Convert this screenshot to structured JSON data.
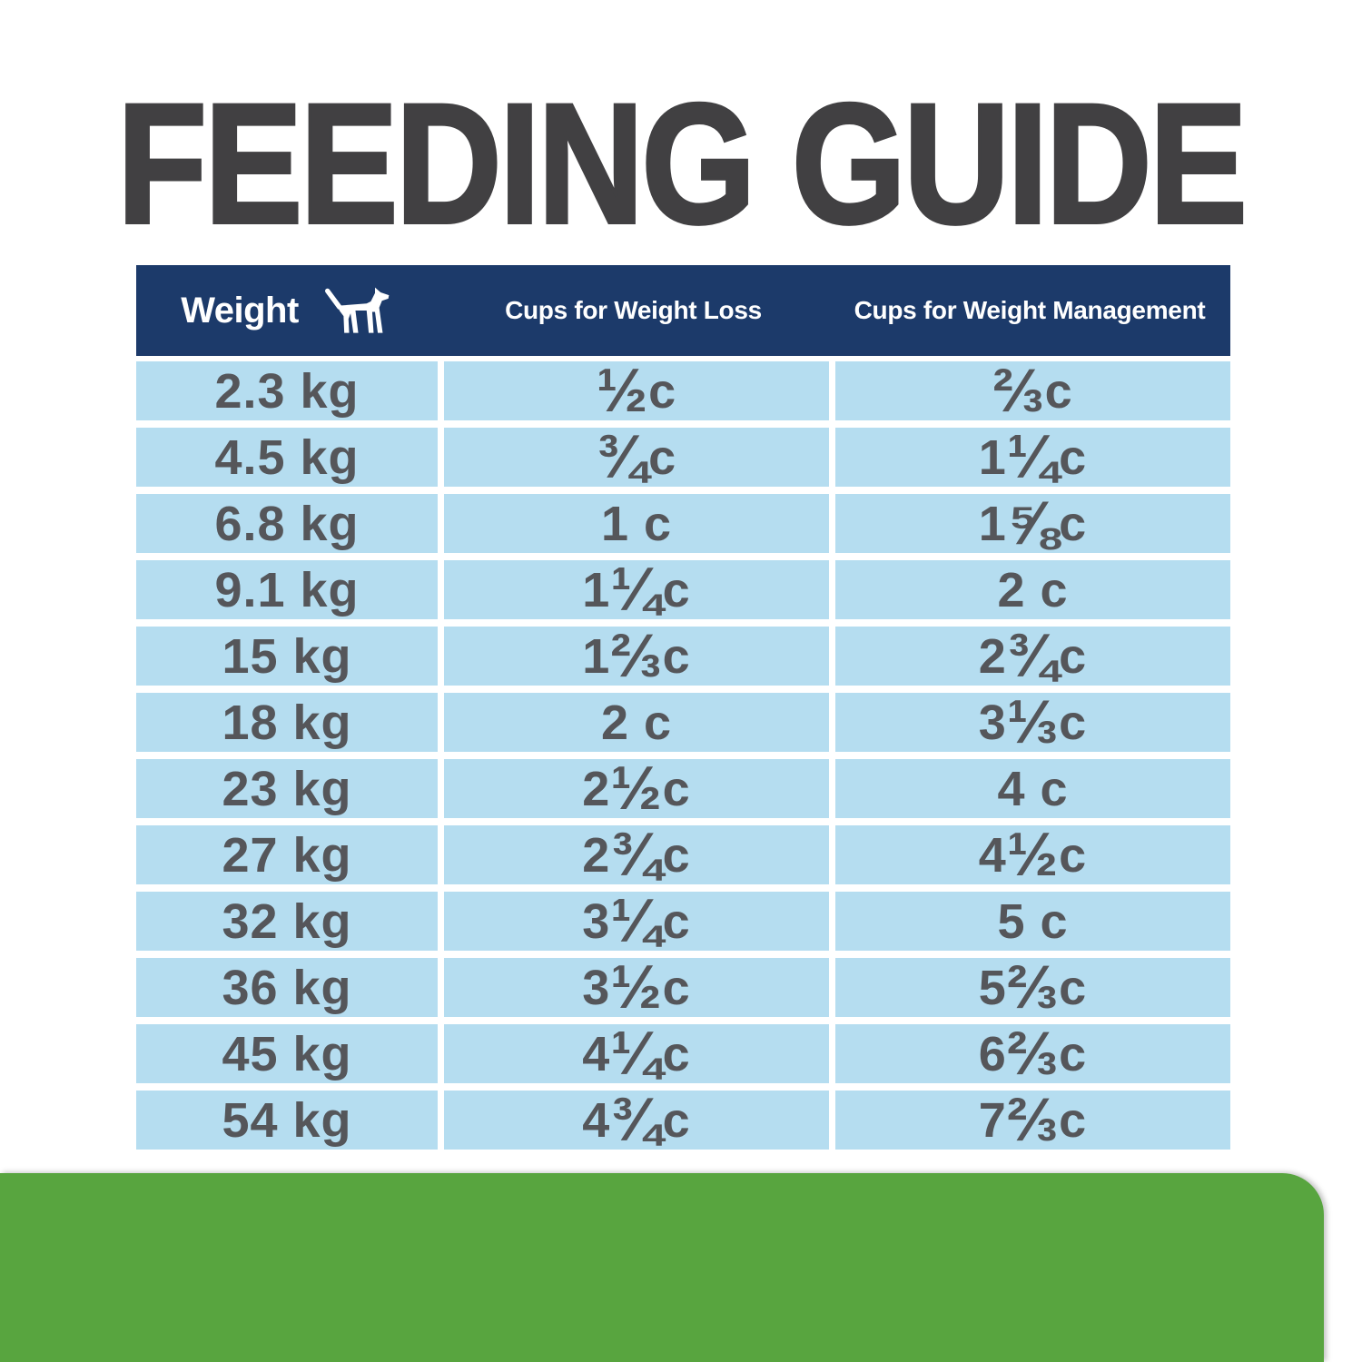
{
  "title": "FEEDING GUIDE",
  "table": {
    "header": {
      "weight_label": "Weight",
      "weight_icon": "dog-icon",
      "cups_weight_loss_label": "Cups for Weight Loss",
      "cups_weight_management_label": "Cups for Weight Management"
    },
    "rows": [
      {
        "weight": "2.3 kg",
        "cups_weight_loss": "½ c",
        "cups_weight_management": "⅔ c"
      },
      {
        "weight": "4.5 kg",
        "cups_weight_loss": "¾ c",
        "cups_weight_management": "1 ¼ c"
      },
      {
        "weight": "6.8 kg",
        "cups_weight_loss": "1 c",
        "cups_weight_management": "1 ⅝ c"
      },
      {
        "weight": "9.1 kg",
        "cups_weight_loss": "1 ¼ c",
        "cups_weight_management": "2 c"
      },
      {
        "weight": "15 kg",
        "cups_weight_loss": "1 ⅔ c",
        "cups_weight_management": "2 ¾ c"
      },
      {
        "weight": "18 kg",
        "cups_weight_loss": "2 c",
        "cups_weight_management": "3 ⅓ c"
      },
      {
        "weight": "23 kg",
        "cups_weight_loss": "2 ½ c",
        "cups_weight_management": "4 c"
      },
      {
        "weight": "27 kg",
        "cups_weight_loss": "2 ¾ c",
        "cups_weight_management": "4 ½ c"
      },
      {
        "weight": "32 kg",
        "cups_weight_loss": "3 ¼ c",
        "cups_weight_management": "5 c"
      },
      {
        "weight": "36 kg",
        "cups_weight_loss": "3 ½ c",
        "cups_weight_management": "5 ⅔ c"
      },
      {
        "weight": "45 kg",
        "cups_weight_loss": "4 ¼ c",
        "cups_weight_management": "6 ⅔ c"
      },
      {
        "weight": "54 kg",
        "cups_weight_loss": "4 ¾ c",
        "cups_weight_management": "7 ⅔ c"
      }
    ]
  },
  "chart_data": {
    "type": "table",
    "title": "FEEDING GUIDE",
    "columns": [
      "Weight",
      "Cups for Weight Loss",
      "Cups for Weight Management"
    ],
    "rows": [
      [
        "2.3 kg",
        "1/2 c",
        "2/3 c"
      ],
      [
        "4.5 kg",
        "3/4 c",
        "1 1/4 c"
      ],
      [
        "6.8 kg",
        "1 c",
        "1 5/8 c"
      ],
      [
        "9.1 kg",
        "1 1/4 c",
        "2 c"
      ],
      [
        "15 kg",
        "1 2/3 c",
        "2 3/4 c"
      ],
      [
        "18 kg",
        "2 c",
        "3 1/3 c"
      ],
      [
        "23 kg",
        "2 1/2 c",
        "4 c"
      ],
      [
        "27 kg",
        "2 3/4 c",
        "4 1/2 c"
      ],
      [
        "32 kg",
        "3 1/4 c",
        "5 c"
      ],
      [
        "36 kg",
        "3 1/2 c",
        "5 2/3 c"
      ],
      [
        "45 kg",
        "4 1/4 c",
        "6 2/3 c"
      ],
      [
        "54 kg",
        "4 3/4 c",
        "7 2/3 c"
      ]
    ]
  },
  "colors": {
    "title_charcoal": "#414042",
    "header_navy": "#1c3a6a",
    "row_blue": "#b5ddf0",
    "cell_text_gray": "#55565a",
    "footer_green": "#58a53f",
    "background": "#ffffff"
  }
}
